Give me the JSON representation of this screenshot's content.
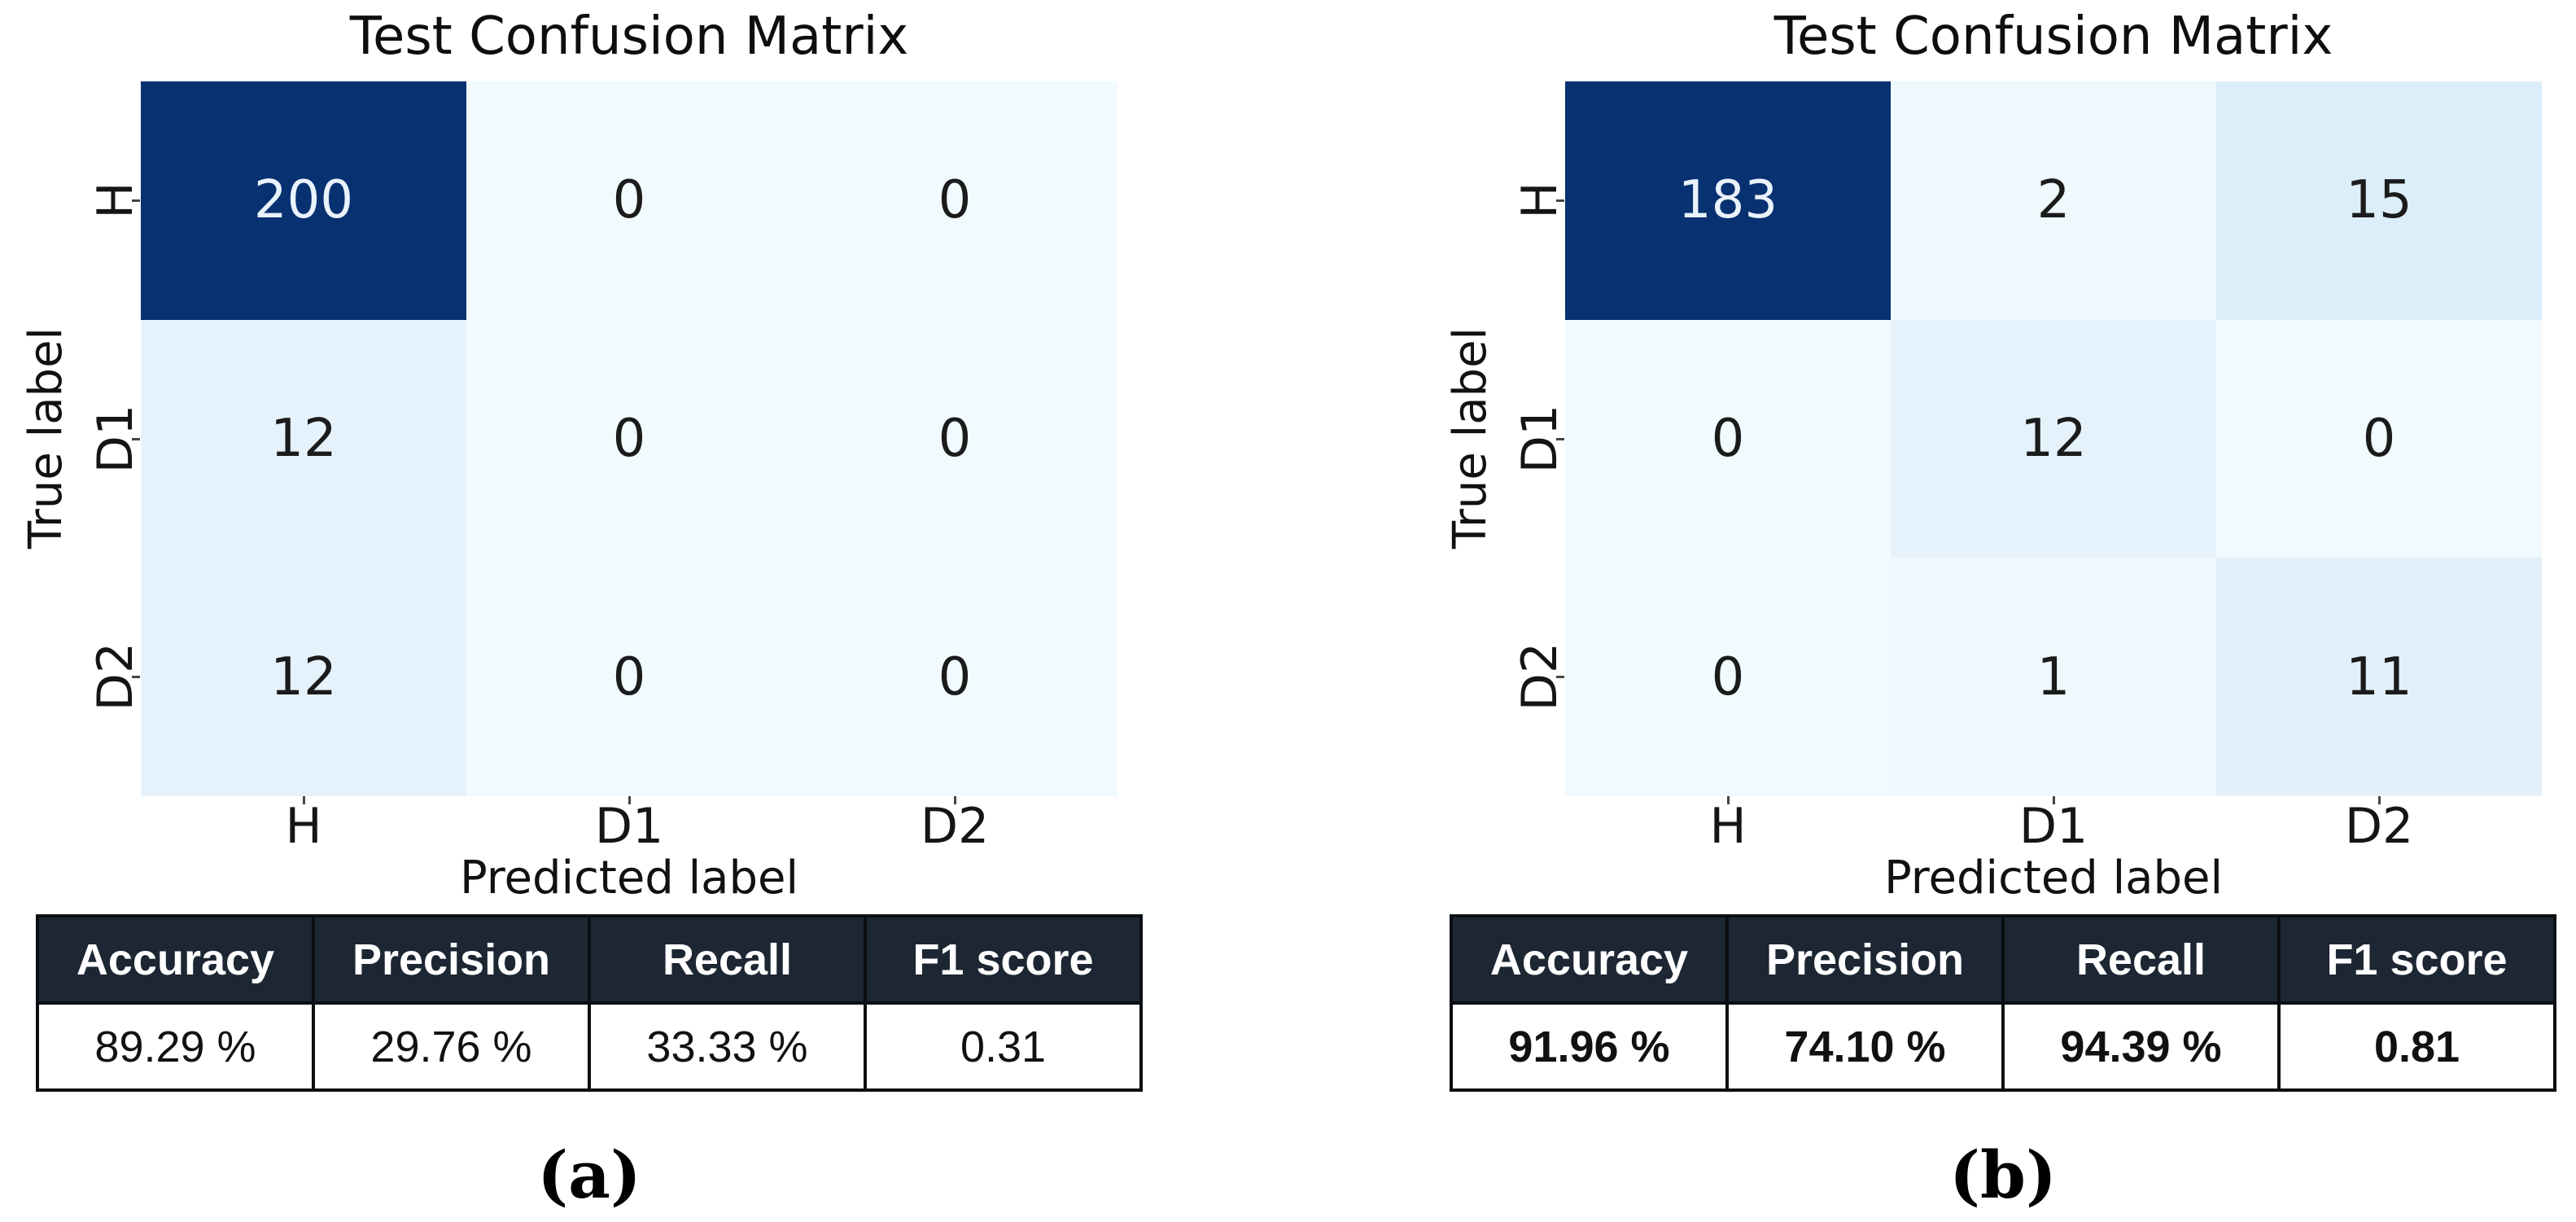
{
  "figure_colors": {
    "background": "#ffffff",
    "table_header_bg": "#1d2633",
    "table_border": "#0b0e12",
    "heatmap_max": "#073170",
    "heatmap_min": "#f1fafe"
  },
  "chart_data": [
    {
      "type": "heatmap",
      "panel": "a",
      "caption": "(a)",
      "title": "Test Confusion Matrix",
      "xlabel": "Predicted label",
      "ylabel": "True label",
      "x_tick_labels": [
        "H",
        "D1",
        "D2"
      ],
      "y_tick_labels": [
        "H",
        "D1",
        "D2"
      ],
      "matrix": [
        [
          200,
          0,
          0
        ],
        [
          12,
          0,
          0
        ],
        [
          12,
          0,
          0
        ]
      ],
      "colormap": "Blues",
      "cells": [
        {
          "value": "200",
          "bg": "#073170",
          "fg": "#eaf2fb"
        },
        {
          "value": "0",
          "bg": "#f1fafe",
          "fg": "#1b1b1b"
        },
        {
          "value": "0",
          "bg": "#f1fafe",
          "fg": "#1b1b1b"
        },
        {
          "value": "12",
          "bg": "#e6f2fb",
          "fg": "#1b1b1b"
        },
        {
          "value": "0",
          "bg": "#f1fafe",
          "fg": "#1b1b1b"
        },
        {
          "value": "0",
          "bg": "#f1fafe",
          "fg": "#1b1b1b"
        },
        {
          "value": "12",
          "bg": "#e6f2fb",
          "fg": "#1b1b1b"
        },
        {
          "value": "0",
          "bg": "#f1fafe",
          "fg": "#1b1b1b"
        },
        {
          "value": "0",
          "bg": "#f1fafe",
          "fg": "#1b1b1b"
        }
      ],
      "metrics": {
        "headers": [
          "Accuracy",
          "Precision",
          "Recall",
          "F1 score"
        ],
        "values": [
          "89.29 %",
          "29.76 %",
          "33.33 %",
          "0.31"
        ]
      }
    },
    {
      "type": "heatmap",
      "panel": "b",
      "caption": "(b)",
      "title": "Test Confusion Matrix",
      "xlabel": "Predicted label",
      "ylabel": "True label",
      "x_tick_labels": [
        "H",
        "D1",
        "D2"
      ],
      "y_tick_labels": [
        "H",
        "D1",
        "D2"
      ],
      "matrix": [
        [
          183,
          2,
          15
        ],
        [
          0,
          12,
          0
        ],
        [
          0,
          1,
          11
        ]
      ],
      "colormap": "Blues",
      "cells": [
        {
          "value": "183",
          "bg": "#073170",
          "fg": "#eaf2fb"
        },
        {
          "value": "2",
          "bg": "#eef8fd",
          "fg": "#1b1b1b"
        },
        {
          "value": "15",
          "bg": "#dbeefa",
          "fg": "#1b1b1b"
        },
        {
          "value": "0",
          "bg": "#f1fafe",
          "fg": "#1b1b1b"
        },
        {
          "value": "12",
          "bg": "#e6f2fb",
          "fg": "#1b1b1b"
        },
        {
          "value": "0",
          "bg": "#f1fafe",
          "fg": "#1b1b1b"
        },
        {
          "value": "0",
          "bg": "#f1fafe",
          "fg": "#1b1b1b"
        },
        {
          "value": "1",
          "bg": "#eef8fd",
          "fg": "#1b1b1b"
        },
        {
          "value": "11",
          "bg": "#e3f0fa",
          "fg": "#1b1b1b"
        }
      ],
      "metrics": {
        "headers": [
          "Accuracy",
          "Precision",
          "Recall",
          "F1 score"
        ],
        "values": [
          "91.96 %",
          "74.10 %",
          "94.39 %",
          "0.81"
        ]
      }
    }
  ]
}
